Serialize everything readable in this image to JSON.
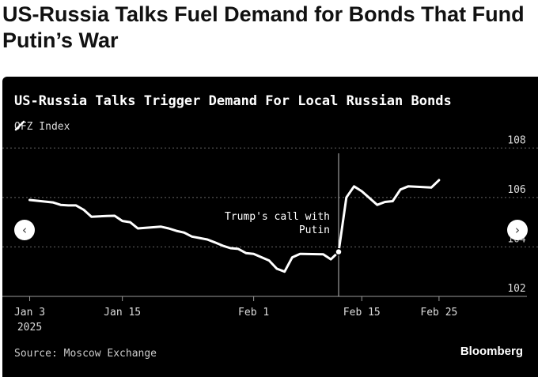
{
  "headline": "US-Russia Talks Fuel Demand for Bonds That Fund Putin’s War",
  "brand": "Bloomberg",
  "source": "Source: Moscow Exchange",
  "nav": {
    "prev_symbol": "‹",
    "next_symbol": "›"
  },
  "colors": {
    "background": "#000000",
    "line": "#ffffff",
    "grid": "#666666",
    "text": "#ffffff"
  },
  "chart_data": {
    "type": "line",
    "title": "US-Russia Talks Trigger Demand For Local Russian Bonds",
    "series": [
      {
        "name": "OFZ Index",
        "points": [
          [
            "2025-01-03",
            105.9
          ],
          [
            "2025-01-06",
            105.8
          ],
          [
            "2025-01-07",
            105.7
          ],
          [
            "2025-01-08",
            105.68
          ],
          [
            "2025-01-09",
            105.68
          ],
          [
            "2025-01-10",
            105.5
          ],
          [
            "2025-01-11",
            105.22
          ],
          [
            "2025-01-13",
            105.25
          ],
          [
            "2025-01-14",
            105.26
          ],
          [
            "2025-01-15",
            105.05
          ],
          [
            "2025-01-16",
            105.0
          ],
          [
            "2025-01-17",
            104.75
          ],
          [
            "2025-01-20",
            104.82
          ],
          [
            "2025-01-21",
            104.75
          ],
          [
            "2025-01-22",
            104.65
          ],
          [
            "2025-01-23",
            104.58
          ],
          [
            "2025-01-24",
            104.42
          ],
          [
            "2025-01-26",
            104.3
          ],
          [
            "2025-01-27",
            104.18
          ],
          [
            "2025-01-28",
            104.05
          ],
          [
            "2025-01-29",
            103.95
          ],
          [
            "2025-01-30",
            103.92
          ],
          [
            "2025-01-31",
            103.75
          ],
          [
            "2025-02-01",
            103.72
          ],
          [
            "2025-02-03",
            103.45
          ],
          [
            "2025-02-04",
            103.12
          ],
          [
            "2025-02-05",
            103.0
          ],
          [
            "2025-02-06",
            103.58
          ],
          [
            "2025-02-07",
            103.72
          ],
          [
            "2025-02-10",
            103.7
          ],
          [
            "2025-02-11",
            103.5
          ],
          [
            "2025-02-12",
            103.8
          ],
          [
            "2025-02-13",
            106.0
          ],
          [
            "2025-02-14",
            106.45
          ],
          [
            "2025-02-15",
            106.25
          ],
          [
            "2025-02-17",
            105.7
          ],
          [
            "2025-02-18",
            105.82
          ],
          [
            "2025-02-19",
            105.85
          ],
          [
            "2025-02-20",
            106.32
          ],
          [
            "2025-02-21",
            106.45
          ],
          [
            "2025-02-24",
            106.4
          ],
          [
            "2025-02-25",
            106.7
          ]
        ]
      }
    ],
    "x_ticks": [
      {
        "date": "2025-01-03",
        "label": "Jan 3",
        "sublabel": "2025"
      },
      {
        "date": "2025-01-15",
        "label": "Jan 15",
        "sublabel": ""
      },
      {
        "date": "2025-02-01",
        "label": "Feb 1",
        "sublabel": ""
      },
      {
        "date": "2025-02-15",
        "label": "Feb 15",
        "sublabel": ""
      },
      {
        "date": "2025-02-25",
        "label": "Feb 25",
        "sublabel": ""
      }
    ],
    "xlim": [
      "2025-01-01",
      "2025-03-05"
    ],
    "ylim": [
      102,
      108.2
    ],
    "y_ticks": [
      102,
      104,
      106,
      108
    ],
    "grid": true,
    "legend": "top-left",
    "annotation": {
      "date": "2025-02-12",
      "value": 103.8,
      "text": [
        "Trump's call with",
        "Putin"
      ]
    }
  }
}
